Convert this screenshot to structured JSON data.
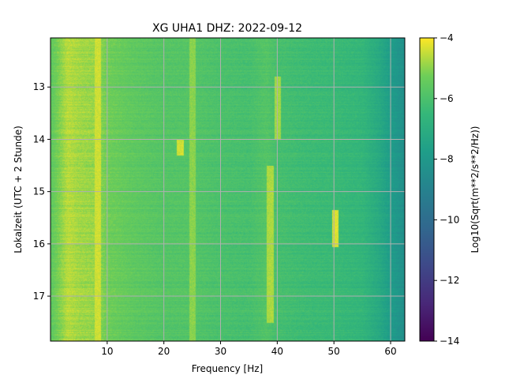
{
  "chart_data": {
    "type": "heatmap",
    "title": "XG UHA1  DHZ: 2022-09-12",
    "xlabel": "Frequency [Hz]",
    "ylabel": "Lokalzeit (UTC + 2 Stunde)",
    "xlim": [
      0,
      62.5
    ],
    "ylim": [
      12.06,
      17.86
    ],
    "y_inverted": true,
    "xticks": [
      10,
      20,
      30,
      40,
      50,
      60
    ],
    "yticks": [
      13,
      14,
      15,
      16,
      17
    ],
    "grid": true,
    "colormap": "viridis",
    "colorbar": {
      "label": "Log10(Sqrt(m**2/s**2/Hz))",
      "range": [
        -14,
        -4
      ],
      "ticks": [
        -4,
        -6,
        -8,
        -10,
        -12,
        -14
      ],
      "tick_labels": [
        "−4",
        "−6",
        "−8",
        "−10",
        "−12",
        "−14"
      ]
    },
    "spectral_profile": {
      "frequency_hz": [
        0,
        3,
        5,
        8,
        10,
        15,
        20,
        25,
        30,
        35,
        38,
        40,
        45,
        50,
        55,
        58,
        60,
        62.5
      ],
      "log_amplitude": [
        -5.6,
        -4.6,
        -4.8,
        -4.9,
        -5.3,
        -5.6,
        -5.8,
        -5.8,
        -6.0,
        -6.1,
        -5.8,
        -6.1,
        -6.3,
        -6.4,
        -6.6,
        -7.2,
        -7.8,
        -8.4
      ]
    },
    "features": [
      {
        "frequency_hz": 8.3,
        "hours": [
          12.06,
          17.86
        ],
        "log_amplitude": -4.4
      },
      {
        "frequency_hz": 22.8,
        "hours": [
          14.0,
          14.3
        ],
        "log_amplitude": -4.4
      },
      {
        "frequency_hz": 25.0,
        "hours": [
          12.06,
          17.86
        ],
        "log_amplitude": -5.0
      },
      {
        "frequency_hz": 38.7,
        "hours": [
          14.5,
          17.5
        ],
        "log_amplitude": -4.7
      },
      {
        "frequency_hz": 40.0,
        "hours": [
          12.8,
          14.0
        ],
        "log_amplitude": -4.8
      },
      {
        "frequency_hz": 50.2,
        "hours": [
          15.35,
          16.05
        ],
        "log_amplitude": -4.3
      }
    ]
  }
}
